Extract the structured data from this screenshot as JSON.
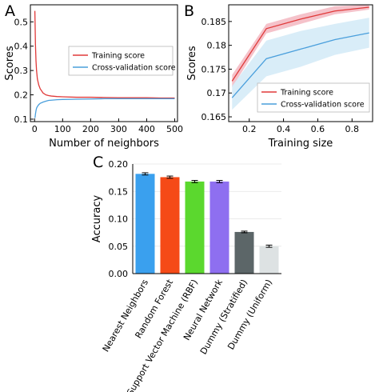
{
  "chart_data": [
    {
      "panel": "A",
      "type": "line",
      "xlabel": "Number of neighbors",
      "ylabel": "Scores",
      "xlim": [
        -15,
        510
      ],
      "ylim": [
        0.09,
        0.57
      ],
      "xticks": [
        0,
        100,
        200,
        300,
        400,
        500
      ],
      "yticks": [
        0.1,
        0.2,
        0.3,
        0.4,
        0.5
      ],
      "legend_position": "center-right",
      "colors": {
        "Training score": "#e03a3a",
        "Cross-validation score": "#4a9fdc"
      },
      "series": [
        {
          "name": "Training score",
          "x": [
            1,
            2,
            3,
            5,
            7,
            10,
            15,
            20,
            30,
            40,
            50,
            60,
            80,
            100,
            150,
            200,
            250,
            300,
            350,
            400,
            450,
            500
          ],
          "values": [
            0.545,
            0.48,
            0.41,
            0.34,
            0.3,
            0.265,
            0.24,
            0.225,
            0.208,
            0.2,
            0.197,
            0.195,
            0.193,
            0.192,
            0.19,
            0.19,
            0.189,
            0.188,
            0.188,
            0.188,
            0.187,
            0.187
          ]
        },
        {
          "name": "Cross-validation score",
          "x": [
            1,
            2,
            3,
            5,
            7,
            10,
            15,
            20,
            30,
            40,
            50,
            60,
            80,
            100,
            150,
            200,
            250,
            300,
            350,
            400,
            450,
            500
          ],
          "values": [
            0.105,
            0.11,
            0.12,
            0.135,
            0.145,
            0.152,
            0.16,
            0.165,
            0.17,
            0.174,
            0.177,
            0.178,
            0.18,
            0.181,
            0.182,
            0.183,
            0.184,
            0.184,
            0.184,
            0.184,
            0.184,
            0.184
          ]
        }
      ]
    },
    {
      "panel": "B",
      "type": "line",
      "xlabel": "Training size",
      "ylabel": "Scores",
      "xlim": [
        0.08,
        0.92
      ],
      "ylim": [
        0.164,
        0.1885
      ],
      "xticks": [
        0.2,
        0.4,
        0.6,
        0.8
      ],
      "yticks": [
        0.165,
        0.17,
        0.175,
        0.18,
        0.185
      ],
      "legend_position": "lower-right",
      "colors": {
        "Training score": "#e03a3a",
        "Cross-validation score": "#4a9fdc"
      },
      "x": [
        0.1,
        0.3,
        0.5,
        0.7,
        0.9
      ],
      "series": [
        {
          "name": "Training score",
          "values": [
            0.1725,
            0.1835,
            0.1855,
            0.1872,
            0.188
          ],
          "lower": [
            0.1712,
            0.1825,
            0.1845,
            0.1865,
            0.1875
          ],
          "upper": [
            0.1738,
            0.1845,
            0.1865,
            0.1882,
            0.1885
          ]
        },
        {
          "name": "Cross-validation score",
          "values": [
            0.169,
            0.1772,
            0.1792,
            0.1812,
            0.1826
          ],
          "lower": [
            0.1665,
            0.1735,
            0.1755,
            0.178,
            0.1795
          ],
          "upper": [
            0.1715,
            0.181,
            0.183,
            0.1845,
            0.1858
          ]
        }
      ]
    },
    {
      "panel": "C",
      "type": "bar",
      "ylabel": "Accuracy",
      "ylim": [
        0.0,
        0.2
      ],
      "yticks": [
        "0.00",
        "0.05",
        "0.10",
        "0.15",
        "0.20"
      ],
      "categories": [
        "Nearest Neighbors",
        "Random Forest",
        "Support Vector Machine (RBF)",
        "Neural Network",
        "Dummy (Stratified)",
        "Dummy (Uniform)"
      ],
      "values": [
        0.182,
        0.176,
        0.168,
        0.168,
        0.076,
        0.05
      ],
      "errors": [
        0.002,
        0.002,
        0.002,
        0.002,
        0.0015,
        0.002
      ],
      "colors": [
        "#3aa0ee",
        "#f54a17",
        "#5bd82e",
        "#8e6ff0",
        "#5c6668",
        "#dde2e3"
      ]
    }
  ]
}
